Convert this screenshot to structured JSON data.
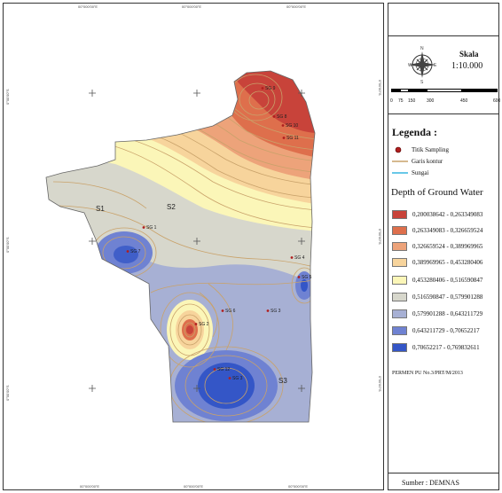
{
  "map": {
    "top_ticks": [
      "00°000'00\"E",
      "00°000'00\"E",
      "00°000'00\"E"
    ],
    "bottom_ticks": [
      "00°000'00\"E",
      "00°000'00\"E",
      "00°000'00\"E"
    ],
    "left_ticks": [
      "0°00'00\"S",
      "0°00'00\"S",
      "0°00'00\"S"
    ],
    "right_ticks": [
      "0°00'00\"S",
      "0°00'00\"S",
      "0°00'00\"S"
    ],
    "sample_points": [
      {
        "label": "SG 9"
      },
      {
        "label": "SG 8"
      },
      {
        "label": "SG 10"
      },
      {
        "label": "SG 11"
      },
      {
        "label": "SG 1"
      },
      {
        "label": "SG 4"
      },
      {
        "label": "SG 5"
      },
      {
        "label": "SG 6"
      },
      {
        "label": "SG 2"
      },
      {
        "label": "SG 12"
      },
      {
        "label": "SG 3"
      },
      {
        "label": "SG 3"
      },
      {
        "label": "SG 7"
      }
    ],
    "regions": [
      "S1",
      "S2",
      "S3"
    ],
    "colors": {
      "contour": "#c9a26a",
      "river": "#36b6e0",
      "point": "#b01e1e"
    }
  },
  "panel": {
    "compass_labels": {
      "n": "N",
      "s": "S",
      "e": "E",
      "w": "W"
    },
    "scale_title": "Skala",
    "scale_ratio": "1:10.000",
    "scale_numbers": [
      "0",
      "75",
      "150",
      "300",
      "450",
      "600"
    ],
    "legend_title": "Legenda :",
    "legend_items": [
      {
        "label": "Titik Sampling",
        "icon": "red-dot-icon"
      },
      {
        "label": "Garis kontur",
        "icon": "contour-line-icon"
      },
      {
        "label": "Sungai",
        "icon": "river-line-icon"
      }
    ],
    "depth_title": "Depth of Ground Water",
    "classes": [
      {
        "label": "0,200038642 - 0,263349083",
        "color": "#c8433a"
      },
      {
        "label": "0,263349083 - 0,326659524",
        "color": "#de6f4c"
      },
      {
        "label": "0,326659524 - 0,389969965",
        "color": "#eda37a"
      },
      {
        "label": "0,389969965 - 0,453280406",
        "color": "#f7d49c"
      },
      {
        "label": "0,453280406 - 0,516590847",
        "color": "#fbf6b8"
      },
      {
        "label": "0,516590847 - 0,579901288",
        "color": "#d7d7cc"
      },
      {
        "label": "0,579901288 - 0,643211729",
        "color": "#a7b0d4"
      },
      {
        "label": "0,643211729 - 0,70652217",
        "color": "#6f82d2"
      },
      {
        "label": "0,70652217 - 0,769832611",
        "color": "#3456c7"
      }
    ],
    "permen": "PERMEN PU No.3/PRT/M/2013",
    "source": "Sumber : DEMNAS"
  }
}
